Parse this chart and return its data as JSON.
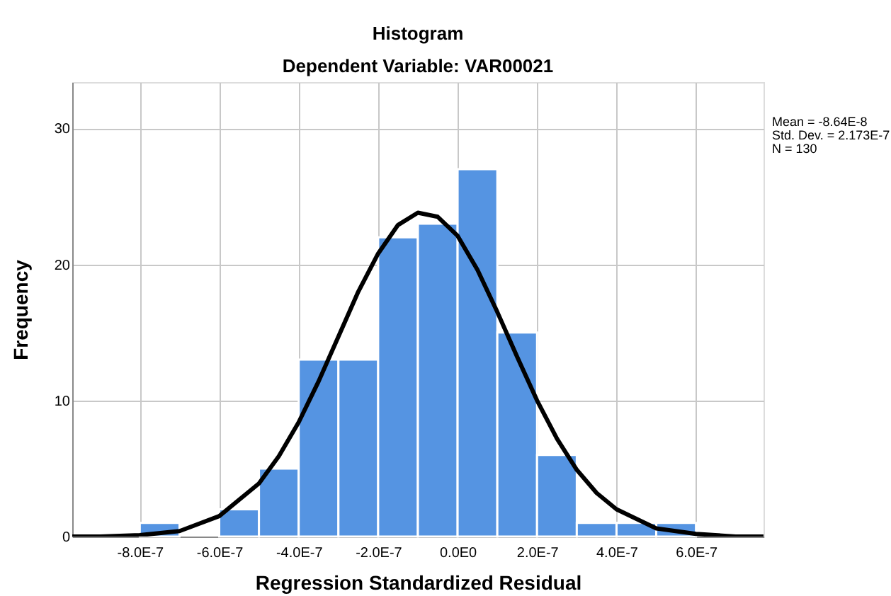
{
  "chart_data": {
    "type": "histogram",
    "title": "Histogram",
    "subtitle": "Dependent Variable: VAR00021",
    "xlabel": "Regression Standardized Residual",
    "ylabel": "Frequency",
    "bins": [
      -8e-07,
      -7e-07,
      -6e-07,
      -5e-07,
      -4e-07,
      -3e-07,
      -2e-07,
      -1e-07,
      0,
      1e-07,
      2e-07,
      3e-07,
      4e-07,
      5e-07,
      6e-07
    ],
    "values": [
      1,
      0,
      2,
      5,
      13,
      13,
      22,
      23,
      27,
      15,
      6,
      1,
      1,
      1
    ],
    "color": "#5594e2",
    "series": [
      {
        "type": "line",
        "color": "#000000",
        "x": [
          -9.7e-07,
          -9e-07,
          -8e-07,
          -7e-07,
          -6e-07,
          -5e-07,
          -4.5e-07,
          -4e-07,
          -3.5e-07,
          -3e-07,
          -2.5e-07,
          -2e-07,
          -1.5e-07,
          -1e-07,
          -5e-08,
          0,
          5e-08,
          1e-07,
          1.5e-07,
          2e-07,
          2.5e-07,
          3e-07,
          3.5e-07,
          4e-07,
          5e-07,
          6e-07,
          7e-07,
          7.7e-07
        ],
        "values": [
          0,
          0,
          0.1,
          0.4,
          1.5,
          3.9,
          5.9,
          8.4,
          11.4,
          14.7,
          18,
          20.8,
          22.9,
          23.8,
          23.5,
          22.1,
          19.6,
          16.5,
          13.2,
          10,
          7.2,
          4.9,
          3.2,
          2,
          0.6,
          0.2,
          0,
          0
        ]
      }
    ],
    "xlim": [
      -9.7e-07,
      7.7e-07
    ],
    "xticks": [
      {
        "value": -8e-07,
        "label": "-8.0E-7"
      },
      {
        "value": -6e-07,
        "label": "-6.0E-7"
      },
      {
        "value": -4e-07,
        "label": "-4.0E-7"
      },
      {
        "value": -2e-07,
        "label": "-2.0E-7"
      },
      {
        "value": 0,
        "label": "0.0E0"
      },
      {
        "value": 2e-07,
        "label": "2.0E-7"
      },
      {
        "value": 4e-07,
        "label": "4.0E-7"
      },
      {
        "value": 6e-07,
        "label": "6.0E-7"
      }
    ],
    "ylim": [
      0,
      33.4
    ],
    "yticks": [
      0,
      10,
      20,
      30
    ],
    "grid": true,
    "legend": false,
    "annotations": [
      "Mean = -8.64E-8",
      "Std. Dev. = 2.173E-7",
      "N = 130"
    ]
  }
}
